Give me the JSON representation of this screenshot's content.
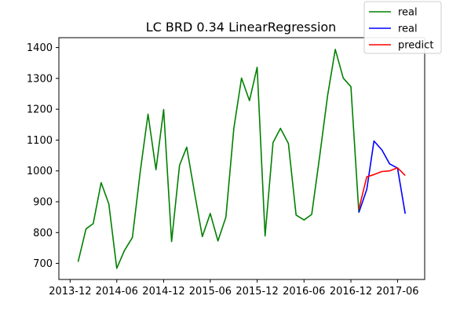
{
  "chart_data": {
    "type": "line",
    "title": "LC BRD 0.34 LinearRegression",
    "xlabel": "",
    "ylabel": "",
    "xlim": [
      "2013-10-18",
      "2017-09-15"
    ],
    "ylim": [
      648,
      1432
    ],
    "x_ticks": [
      "2013-12",
      "2014-06",
      "2014-12",
      "2015-06",
      "2015-12",
      "2016-06",
      "2016-12",
      "2017-06"
    ],
    "y_ticks": [
      700,
      800,
      900,
      1000,
      1100,
      1200,
      1300,
      1400
    ],
    "grid": false,
    "legend_position": "top-right",
    "series": [
      {
        "name": "real",
        "color": "#008000",
        "x": [
          "2014-01-01",
          "2014-02-01",
          "2014-03-01",
          "2014-04-01",
          "2014-05-01",
          "2014-06-01",
          "2014-07-01",
          "2014-08-01",
          "2014-09-01",
          "2014-10-01",
          "2014-11-01",
          "2014-12-01",
          "2015-01-01",
          "2015-02-01",
          "2015-03-01",
          "2015-04-01",
          "2015-05-01",
          "2015-06-01",
          "2015-07-01",
          "2015-08-01",
          "2015-09-01",
          "2015-10-01",
          "2015-11-01",
          "2015-12-01",
          "2016-01-01",
          "2016-02-01",
          "2016-03-01",
          "2016-04-01",
          "2016-05-01",
          "2016-06-01",
          "2016-07-01",
          "2016-08-01",
          "2016-09-01",
          "2016-10-01",
          "2016-11-01",
          "2016-12-01",
          "2017-01-01"
        ],
        "y": [
          705,
          812,
          829,
          962,
          893,
          684,
          742,
          784,
          1000,
          1184,
          1004,
          1199,
          771,
          1018,
          1077,
          927,
          787,
          862,
          773,
          850,
          1138,
          1301,
          1228,
          1336,
          789,
          1092,
          1138,
          1089,
          857,
          841,
          859,
          1047,
          1244,
          1394,
          1301,
          1273,
          865
        ]
      },
      {
        "name": "real",
        "color": "#0000ff",
        "x": [
          "2017-01-01",
          "2017-02-01",
          "2017-03-01",
          "2017-04-01",
          "2017-05-01",
          "2017-06-01",
          "2017-07-01"
        ],
        "y": [
          865,
          940,
          1097,
          1068,
          1023,
          1009,
          861
        ]
      },
      {
        "name": "predict",
        "color": "#ff0000",
        "x": [
          "2017-01-01",
          "2017-02-01",
          "2017-03-01",
          "2017-04-01",
          "2017-05-01",
          "2017-06-01",
          "2017-07-01"
        ],
        "y": [
          876,
          981,
          988,
          998,
          1000,
          1010,
          985
        ]
      }
    ]
  }
}
